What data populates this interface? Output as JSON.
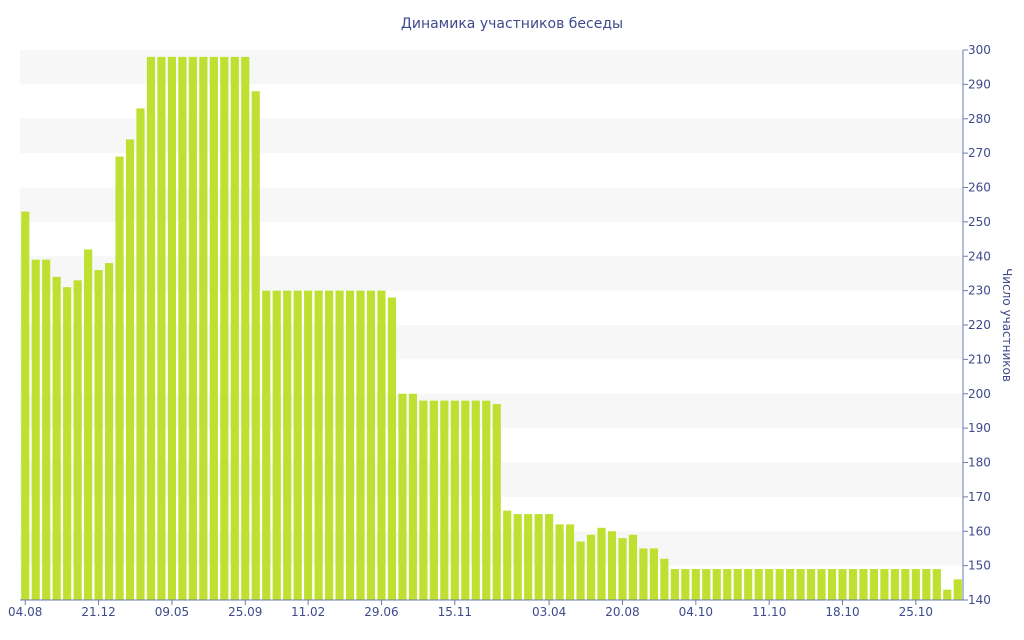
{
  "chart_data": {
    "type": "bar",
    "title": "Динамика участников беседы",
    "xlabel": "",
    "ylabel": "Число участников",
    "ylim": [
      140,
      300
    ],
    "y_ticks": [
      140,
      150,
      160,
      170,
      180,
      190,
      200,
      210,
      220,
      230,
      240,
      250,
      260,
      270,
      280,
      290,
      300
    ],
    "y_axis_side": "right",
    "grid": "alternating horizontal bands",
    "legend": "none",
    "x_tick_labels": [
      "04.08",
      "21.12",
      "09.05",
      "25.09",
      "11.02",
      "29.06",
      "15.11",
      "03.04",
      "20.08",
      "04.10",
      "11.10",
      "18.10",
      "25.10"
    ],
    "x_tick_positions": [
      0,
      7,
      14,
      21,
      27,
      34,
      41,
      50,
      57,
      64,
      71,
      78,
      85
    ],
    "values": [
      253,
      239,
      239,
      234,
      231,
      233,
      242,
      236,
      238,
      269,
      274,
      283,
      298,
      298,
      298,
      298,
      298,
      298,
      298,
      298,
      298,
      298,
      288,
      230,
      230,
      230,
      230,
      230,
      230,
      230,
      230,
      230,
      230,
      230,
      230,
      228,
      200,
      200,
      198,
      198,
      198,
      198,
      198,
      198,
      198,
      197,
      166,
      165,
      165,
      165,
      165,
      162,
      162,
      157,
      159,
      161,
      160,
      158,
      159,
      155,
      155,
      152,
      149,
      149,
      149,
      149,
      149,
      149,
      149,
      149,
      149,
      149,
      149,
      149,
      149,
      149,
      149,
      149,
      149,
      149,
      149,
      149,
      149,
      149,
      149,
      149,
      149,
      149,
      143,
      146
    ],
    "colors": {
      "bar": "#bfe031",
      "band": "#f7f7f7",
      "text": "#3e4a8c",
      "axis": "#6b7bb0"
    }
  }
}
